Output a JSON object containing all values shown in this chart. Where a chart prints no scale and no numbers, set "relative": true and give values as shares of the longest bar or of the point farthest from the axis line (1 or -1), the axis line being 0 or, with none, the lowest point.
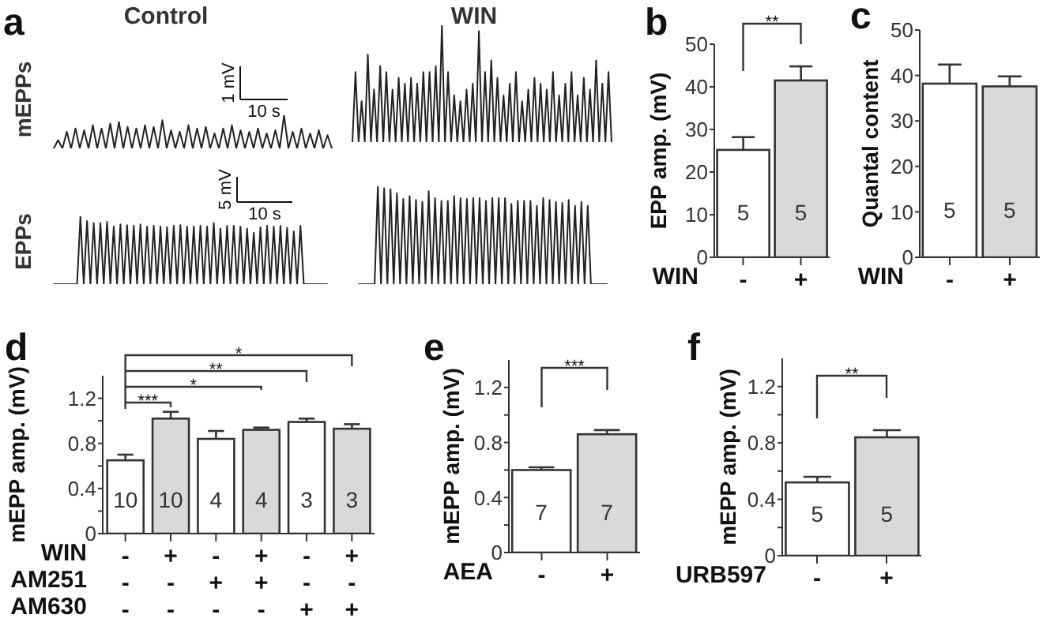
{
  "chart_data": [
    {
      "type": "line",
      "relative": true,
      "title": "Control",
      "ylabel": "mEPPs",
      "color": "#222222",
      "annotations": [
        "a",
        "1 mV",
        "10 s"
      ],
      "categories": [
        null,
        null,
        null,
        null,
        null,
        null,
        null,
        null,
        null,
        null,
        null,
        null,
        null,
        null,
        null,
        null,
        null,
        null,
        null,
        null,
        null,
        null,
        null,
        null,
        null,
        null,
        null,
        null,
        null,
        null,
        null,
        null,
        null,
        null,
        null,
        null,
        null,
        null,
        null,
        null,
        null,
        null,
        null,
        null,
        null,
        null,
        null,
        null,
        null,
        null,
        null,
        null,
        null,
        null,
        null,
        null,
        null,
        null,
        null,
        null,
        null,
        null,
        null,
        null,
        null
      ],
      "values": [
        0,
        0.25,
        0,
        0.5,
        0,
        0.6,
        0,
        0.55,
        0,
        0.7,
        0,
        0.6,
        0,
        0.75,
        0,
        0.8,
        0,
        0.65,
        0,
        0.6,
        0,
        0.7,
        0,
        0.65,
        0,
        0.85,
        0,
        0.55,
        0,
        0.5,
        0,
        0.7,
        0,
        0.6,
        0,
        0.65,
        0,
        0.45,
        0,
        0.6,
        0,
        0.7,
        0,
        0.55,
        0,
        0.5,
        0,
        0.6,
        0,
        0.45,
        0,
        0.55,
        0,
        1,
        0,
        0.5,
        0,
        0.6,
        0,
        0.45,
        0,
        0.55,
        0,
        0.4,
        0
      ]
    },
    {
      "type": "line",
      "relative": true,
      "title": "WIN",
      "color": "#222222",
      "categories": [
        null,
        null,
        null,
        null,
        null,
        null,
        null,
        null,
        null,
        null,
        null,
        null,
        null,
        null,
        null,
        null,
        null,
        null,
        null,
        null,
        null,
        null,
        null,
        null,
        null,
        null,
        null,
        null,
        null,
        null,
        null,
        null,
        null,
        null,
        null,
        null,
        null,
        null,
        null,
        null,
        null,
        null,
        null,
        null,
        null,
        null,
        null,
        null,
        null,
        null,
        null,
        null,
        null,
        null,
        null,
        null,
        null,
        null,
        null,
        null,
        null,
        null,
        null,
        null,
        null,
        null,
        null,
        null,
        null,
        null,
        null,
        null,
        null,
        null,
        null,
        null,
        null,
        null,
        null,
        null,
        null,
        null,
        null,
        null,
        null
      ],
      "values": [
        0,
        0.6,
        0,
        0.35,
        0,
        0.75,
        0,
        0.45,
        0,
        0.65,
        0,
        0.6,
        0,
        0.45,
        0,
        0.55,
        0,
        0.5,
        0,
        0.55,
        0,
        0.5,
        0,
        0.6,
        0,
        0.6,
        0,
        0.65,
        0,
        1,
        0,
        0.6,
        0,
        0.4,
        0,
        0.35,
        0,
        0.45,
        0,
        0.5,
        0,
        0.95,
        0,
        0.6,
        0,
        0.7,
        0,
        0.55,
        0,
        0.4,
        0,
        0.5,
        0,
        0.6,
        0,
        0.35,
        0,
        0.45,
        0,
        0.55,
        0,
        0.5,
        0,
        0.45,
        0,
        0.6,
        0,
        0.4,
        0,
        0.5,
        0,
        0.6,
        0,
        0.4,
        0,
        0.55,
        0,
        0.45,
        0,
        0.7,
        0,
        0.5,
        0,
        0.6,
        0
      ]
    },
    {
      "type": "line",
      "relative": true,
      "ylabel": "EPPs",
      "color": "#222222",
      "annotations": [
        "5 mV",
        "10 s"
      ],
      "categories": [
        null,
        null,
        null,
        null,
        null,
        null,
        null,
        null,
        null,
        null,
        null,
        null,
        null,
        null,
        null,
        null,
        null,
        null,
        null,
        null,
        null,
        null,
        null,
        null,
        null,
        null,
        null,
        null,
        null,
        null,
        null,
        null,
        null,
        null,
        null,
        null,
        null,
        null,
        null,
        null,
        null,
        null,
        null,
        null,
        null,
        null,
        null,
        null,
        null,
        null,
        null,
        null,
        null,
        null,
        null,
        null,
        null,
        null,
        null,
        null,
        null,
        null,
        null,
        null,
        null,
        null,
        null,
        null,
        null,
        null,
        null,
        null,
        null,
        null,
        null,
        null,
        null,
        null,
        null,
        null,
        null,
        null,
        null
      ],
      "values": [
        0,
        0,
        0,
        0,
        0,
        0,
        0,
        0,
        1,
        0,
        0.93,
        0,
        0.9,
        0,
        0.9,
        0,
        0.92,
        0,
        0.85,
        0,
        0.88,
        0,
        0.87,
        0,
        0.86,
        0,
        0.88,
        0,
        0.85,
        0,
        0.86,
        0,
        0.85,
        0,
        0.84,
        0,
        0.86,
        0,
        0.87,
        0,
        0.85,
        0,
        0.85,
        0,
        0.86,
        0,
        0.85,
        0,
        0.9,
        0,
        0.82,
        0,
        0.86,
        0,
        0.86,
        0,
        0.85,
        0,
        0.82,
        0,
        0.76,
        0,
        0.84,
        0,
        0.86,
        0,
        0.85,
        0,
        0.86,
        0,
        0.83,
        0,
        0.78,
        0,
        0.86,
        0,
        0,
        0,
        0,
        0,
        0,
        0,
        0
      ]
    },
    {
      "type": "line",
      "relative": true,
      "color": "#222222",
      "categories": [
        null,
        null,
        null,
        null,
        null,
        null,
        null,
        null,
        null,
        null,
        null,
        null,
        null,
        null,
        null,
        null,
        null,
        null,
        null,
        null,
        null,
        null,
        null,
        null,
        null,
        null,
        null,
        null,
        null,
        null,
        null,
        null,
        null,
        null,
        null,
        null,
        null,
        null,
        null,
        null,
        null,
        null,
        null,
        null,
        null,
        null,
        null,
        null,
        null,
        null,
        null,
        null,
        null,
        null,
        null,
        null,
        null,
        null,
        null,
        null,
        null,
        null,
        null,
        null,
        null,
        null,
        null,
        null,
        null,
        null,
        null,
        null,
        null,
        null,
        null,
        null,
        null,
        null,
        null
      ],
      "values": [
        0,
        0,
        0,
        0,
        0,
        0,
        1,
        0,
        0.98,
        0,
        0.97,
        0,
        0.93,
        0,
        0.87,
        0,
        0.9,
        0,
        0.86,
        0,
        0.84,
        0,
        0.95,
        0,
        0.88,
        0,
        0.85,
        0,
        0.85,
        0,
        0.9,
        0,
        0.88,
        0,
        0.87,
        0,
        0.88,
        0,
        0.88,
        0,
        0.85,
        0,
        0.88,
        0,
        0.88,
        0,
        0.88,
        0,
        0.82,
        0,
        0.85,
        0,
        0.85,
        0,
        0.85,
        0,
        0.8,
        0,
        0.88,
        0,
        0.86,
        0,
        0.84,
        0,
        0.83,
        0,
        0.86,
        0,
        0.8,
        0,
        0.84,
        0,
        0.8,
        0,
        0,
        0,
        0,
        0,
        0
      ]
    },
    {
      "type": "bar",
      "title": "b",
      "ylabel": "EPP amp. (mV)",
      "xlabel": "WIN",
      "categories": [
        "-",
        "+"
      ],
      "values": [
        25.2,
        41.5
      ],
      "colors": [
        "#ffffff",
        "#d9d9d9"
      ],
      "errors": [
        [
          25.2,
          28.2
        ],
        [
          41.5,
          44.8
        ]
      ],
      "ylim": [
        0,
        50
      ],
      "yticks": [
        0,
        10,
        20,
        30,
        40,
        50
      ],
      "annotations": [
        "**",
        "5",
        "5"
      ]
    },
    {
      "type": "bar",
      "title": "c",
      "ylabel": "Quantal content",
      "xlabel": "WIN",
      "categories": [
        "-",
        "+"
      ],
      "values": [
        38.2,
        37.6
      ],
      "colors": [
        "#ffffff",
        "#d9d9d9"
      ],
      "errors": [
        [
          38.2,
          42.4
        ],
        [
          37.6,
          39.8
        ]
      ],
      "ylim": [
        0,
        50
      ],
      "yticks": [
        0,
        10,
        20,
        30,
        40,
        50
      ],
      "annotations": [
        "5",
        "5"
      ]
    },
    {
      "type": "bar",
      "title": "d",
      "ylabel": "mEPP amp. (mV)",
      "xlabel": "WIN\nAM251\nAM630",
      "categories": [
        "-\n-\n-",
        "+\n-\n-",
        "-\n+\n-",
        "+\n+\n-",
        "-\n-\n+",
        "+\n-\n+"
      ],
      "values": [
        0.65,
        1.02,
        0.84,
        0.92,
        0.99,
        0.93
      ],
      "colors": [
        "#ffffff",
        "#d9d9d9",
        "#ffffff",
        "#d9d9d9",
        "#ffffff",
        "#d9d9d9"
      ],
      "errors": [
        [
          0.65,
          0.7
        ],
        [
          1.02,
          1.08
        ],
        [
          0.84,
          0.91
        ],
        [
          0.92,
          0.94
        ],
        [
          0.99,
          1.02
        ],
        [
          0.93,
          0.97
        ]
      ],
      "ylim": [
        0,
        1.4
      ],
      "yticks": [
        0,
        {
          "value": 0.2,
          "label": null
        },
        0.4,
        {
          "value": 0.6,
          "label": null
        },
        0.8,
        {
          "value": 1,
          "label": null
        },
        1.2
      ],
      "annotations": [
        "***",
        "*",
        "**",
        "*",
        "10",
        "10",
        "4",
        "4",
        "3",
        "3"
      ]
    },
    {
      "type": "bar",
      "title": "e",
      "ylabel": "mEPP amp. (mV)",
      "xlabel": "AEA",
      "categories": [
        "-",
        "+"
      ],
      "values": [
        0.6,
        0.86
      ],
      "colors": [
        "#ffffff",
        "#d9d9d9"
      ],
      "errors": [
        [
          0.6,
          0.62
        ],
        [
          0.86,
          0.89
        ]
      ],
      "ylim": [
        0,
        1.4
      ],
      "yticks": [
        0,
        {
          "value": 0.2,
          "label": null
        },
        0.4,
        {
          "value": 0.6,
          "label": null
        },
        0.8,
        {
          "value": 1,
          "label": null
        },
        1.2
      ],
      "annotations": [
        "***",
        "7",
        "7"
      ]
    },
    {
      "type": "bar",
      "title": "f",
      "ylabel": "mEPP amp. (mV)",
      "xlabel": "URB597",
      "categories": [
        "-",
        "+"
      ],
      "values": [
        0.52,
        0.84
      ],
      "colors": [
        "#ffffff",
        "#d9d9d9"
      ],
      "errors": [
        [
          0.52,
          0.56
        ],
        [
          0.84,
          0.89
        ]
      ],
      "ylim": [
        0,
        1.4
      ],
      "yticks": [
        0,
        {
          "value": 0.2,
          "label": null
        },
        0.4,
        {
          "value": 0.6,
          "label": null
        },
        0.8,
        {
          "value": 1,
          "label": null
        },
        1.2
      ],
      "annotations": [
        "**",
        "5",
        "5"
      ]
    }
  ]
}
